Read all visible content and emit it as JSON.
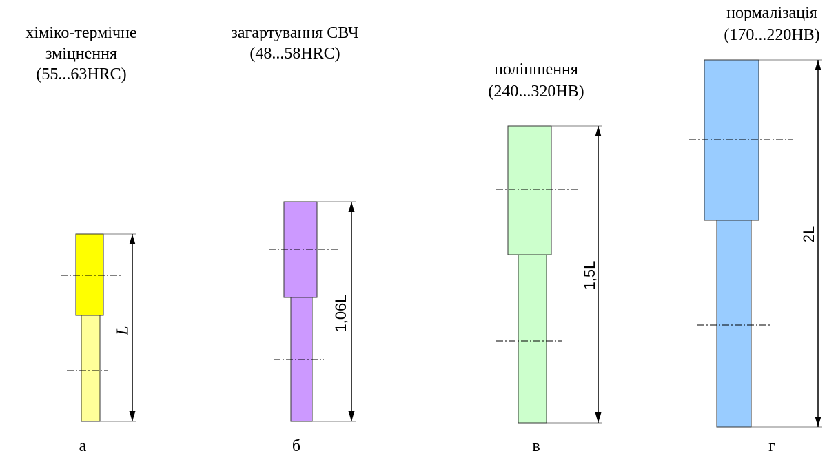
{
  "items": [
    {
      "title": [
        "хіміко-термічне",
        "зміцнення",
        "(55...63HRC)"
      ],
      "dimension": "L",
      "letter": "а"
    },
    {
      "title": [
        "загартування СВЧ",
        "(48...58HRC)"
      ],
      "dimension": "1,06L",
      "letter": "б"
    },
    {
      "title": [
        "поліпшення",
        "(240...320HB)"
      ],
      "dimension": "1,5L",
      "letter": "в"
    },
    {
      "title": [
        "нормалізація",
        "(170...220HB)"
      ],
      "dimension": "2L",
      "letter": "г"
    }
  ]
}
